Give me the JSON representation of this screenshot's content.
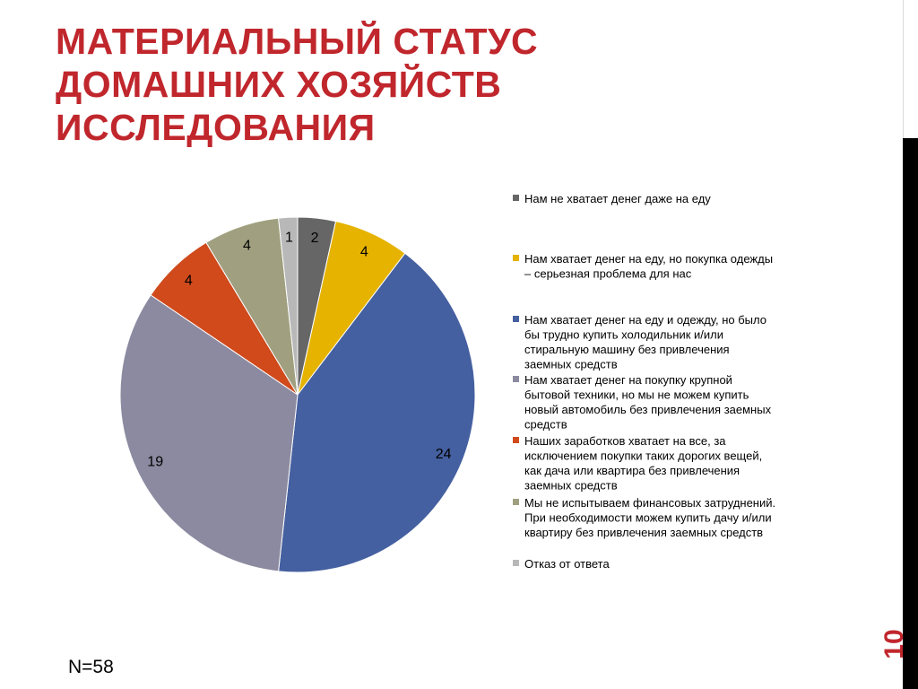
{
  "slide": {
    "title_lines": [
      "МАТЕРИАЛЬНЫЙ СТАТУС",
      "ДОМАШНИХ ХОЗЯЙСТВ",
      "ИССЛЕДОВАНИЯ"
    ],
    "sample_size": "N=58",
    "slide_number": "10",
    "accent_color": "#c0272d"
  },
  "chart_data": {
    "type": "pie",
    "title": "",
    "legend_position": "right",
    "slices": [
      {
        "label": "Нам не хватает денег даже на еду",
        "label_lines": [
          "Нам не хватает денег даже на еду"
        ],
        "value": 2,
        "color": "#666666"
      },
      {
        "label": "Нам хватает денег на еду, но покупка одежды – серьезная проблема для нас",
        "label_lines": [
          "Нам хватает денег на еду, но покупка одежды",
          "– серьезная проблема для нас"
        ],
        "value": 4,
        "color": "#e5b300"
      },
      {
        "label": "Нам хватает денег на еду и одежду, но было бы трудно купить холодильник и/или стиральную машину без привлечения заемных средств",
        "label_lines": [
          "Нам хватает денег на еду и одежду, но было",
          "бы трудно купить холодильник и/или",
          "стиральную машину без привлечения",
          "заемных средств"
        ],
        "value": 24,
        "color": "#4560a0"
      },
      {
        "label": "Нам хватает денег на покупку крупной бытовой техники, но мы не можем купить новый автомобиль без привлечения заемных средств",
        "label_lines": [
          "Нам хватает денег на покупку крупной",
          "бытовой техники, но мы не можем купить",
          "новый автомобиль без привлечения заемных",
          "средств"
        ],
        "value": 19,
        "color": "#8b8aa0"
      },
      {
        "label": "Наших заработков хватает на все, за исключением покупки таких дорогих вещей, как дача или квартира без привлечения заемных средств",
        "label_lines": [
          "Наших заработков хватает на все, за",
          "исключением покупки таких дорогих вещей,",
          "как дача или квартира без привлечения",
          "заемных средств"
        ],
        "value": 4,
        "color": "#d04a1c"
      },
      {
        "label": "Мы не испытываем финансовых затруднений. При необходимости можем купить дачу и/или квартиру без привлечения заемных средств",
        "label_lines": [
          "Мы не испытываем финансовых затруднений.",
          "При необходимости можем купить дачу и/или",
          "квартиру без привлечения заемных средств"
        ],
        "value": 4,
        "color": "#a0a080"
      },
      {
        "label": "Отказ от ответа",
        "label_lines": [
          "Отказ от ответа"
        ],
        "value": 1,
        "color": "#b8b8b8"
      }
    ]
  }
}
